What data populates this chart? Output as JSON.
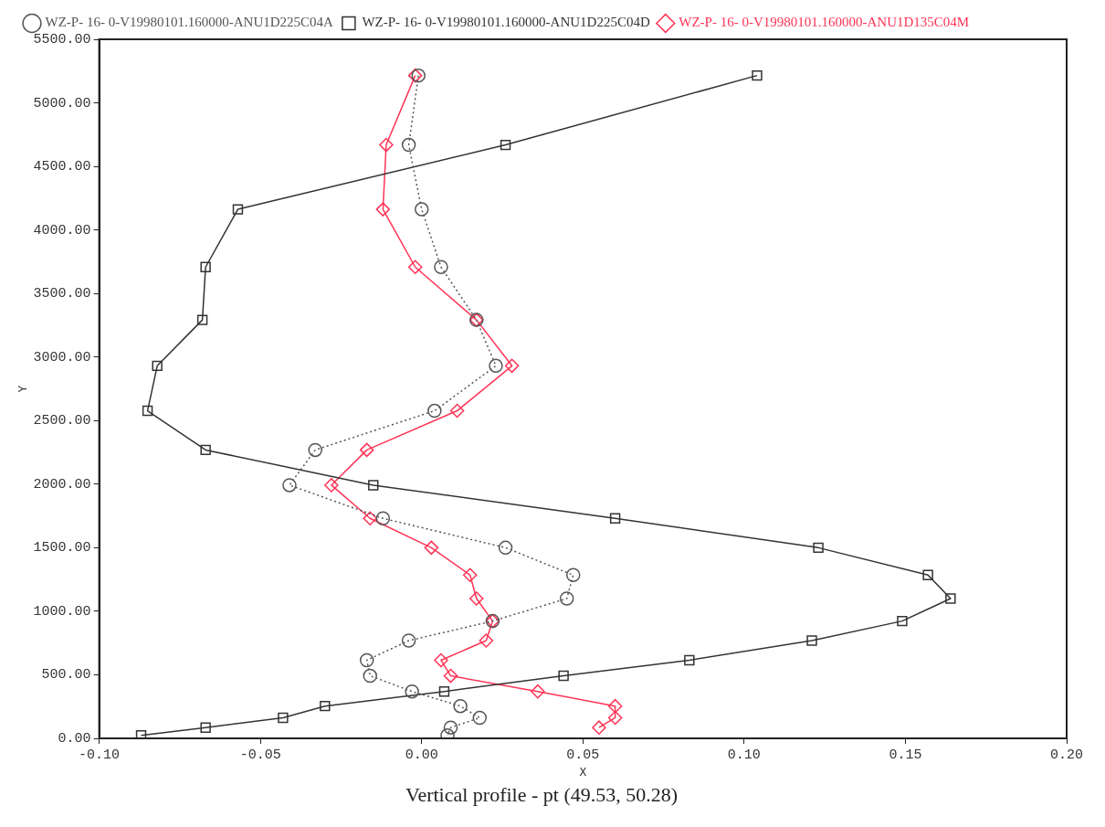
{
  "chart_data": {
    "type": "line",
    "title": "Vertical profile - pt (49.53, 50.28)",
    "xlabel": "X",
    "ylabel": "Y",
    "xlim": [
      -0.1,
      0.2
    ],
    "xticks": [
      {
        "value": -0.1,
        "label": "-0.10"
      },
      {
        "value": -0.05,
        "label": "-0.05"
      },
      {
        "value": 0,
        "label": "0.00"
      },
      {
        "value": 0.05,
        "label": "0.05"
      },
      {
        "value": 0.1,
        "label": "0.10"
      },
      {
        "value": 0.15,
        "label": "0.15"
      },
      {
        "value": 0.2,
        "label": "0.20"
      }
    ],
    "ylim": [
      0,
      5500
    ],
    "yticks": [
      {
        "value": 0,
        "label": "0.00"
      },
      {
        "value": 500,
        "label": "500.00"
      },
      {
        "value": 1000,
        "label": "1000.00"
      },
      {
        "value": 1500,
        "label": "1500.00"
      },
      {
        "value": 2000,
        "label": "2000.00"
      },
      {
        "value": 2500,
        "label": "2500.00"
      },
      {
        "value": 3000,
        "label": "3000.00"
      },
      {
        "value": 3500,
        "label": "3500.00"
      },
      {
        "value": 4000,
        "label": "4000.00"
      },
      {
        "value": 4500,
        "label": "4500.00"
      },
      {
        "value": 5000,
        "label": "5000.00"
      },
      {
        "value": 5500,
        "label": "5500.00"
      }
    ],
    "grid": false,
    "legend": "top",
    "series": [
      {
        "name": "WZ-P- 16- 0-V19980101.160000-ANU1D225C04A",
        "color": "#555555",
        "marker": "circle",
        "line_style": "dotted",
        "x": [
          -0.001,
          -0.004,
          0.0,
          0.006,
          0.017,
          0.023,
          0.004,
          -0.033,
          -0.041,
          -0.012,
          0.026,
          0.047,
          0.045,
          0.022,
          -0.004,
          -0.017,
          -0.016,
          -0.003,
          0.012,
          0.018,
          0.009,
          0.008
        ],
        "values": [
          5215,
          4669,
          4162,
          3708,
          3292,
          2931,
          2577,
          2269,
          1992,
          1731,
          1500,
          1285,
          1100,
          923,
          769,
          615,
          492,
          369,
          254,
          162,
          85,
          23
        ]
      },
      {
        "name": "WZ-P- 16- 0-V19980101.160000-ANU1D225C04D",
        "color": "#333333",
        "marker": "square",
        "line_style": "solid",
        "x": [
          0.104,
          0.026,
          -0.057,
          -0.067,
          -0.068,
          -0.082,
          -0.085,
          -0.067,
          -0.015,
          0.06,
          0.123,
          0.157,
          0.164,
          0.149,
          0.121,
          0.083,
          0.044,
          0.007,
          -0.03,
          -0.043,
          -0.067,
          -0.087
        ],
        "values": [
          5215,
          4669,
          4162,
          3708,
          3292,
          2931,
          2577,
          2269,
          1992,
          1731,
          1500,
          1285,
          1100,
          923,
          769,
          615,
          492,
          369,
          254,
          162,
          85,
          23
        ]
      },
      {
        "name": "WZ-P- 16- 0-V19980101.160000-ANU1D135C04M",
        "color": "#ff3355",
        "marker": "diamond",
        "line_style": "solid",
        "x": [
          -0.002,
          -0.011,
          -0.012,
          -0.002,
          0.017,
          0.028,
          0.011,
          -0.017,
          -0.028,
          -0.016,
          0.003,
          0.015,
          0.017,
          0.022,
          0.02,
          0.006,
          0.009,
          0.036,
          0.06,
          0.06,
          0.055
        ],
        "values": [
          5215,
          4669,
          4162,
          3708,
          3292,
          2931,
          2577,
          2269,
          1992,
          1731,
          1500,
          1285,
          1100,
          923,
          769,
          615,
          492,
          369,
          254,
          162,
          85
        ]
      }
    ]
  }
}
